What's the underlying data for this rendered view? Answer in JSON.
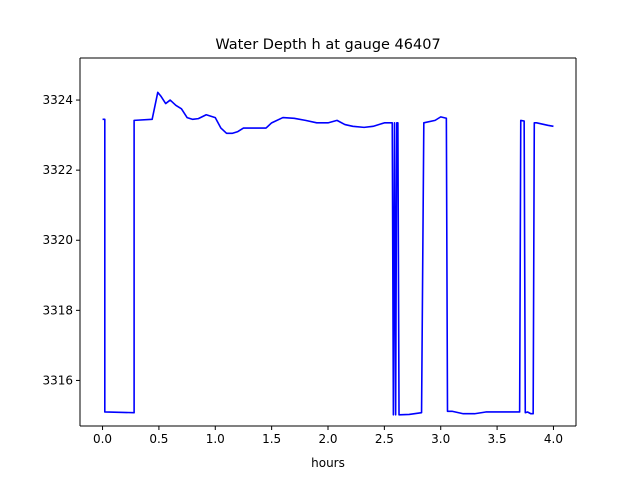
{
  "chart_data": {
    "type": "line",
    "title": "Water Depth h at gauge 46407",
    "xlabel": "hours",
    "ylabel": "",
    "xlim": [
      -0.2,
      4.2
    ],
    "ylim": [
      3314.7,
      3325.2
    ],
    "xticks": [
      0.0,
      0.5,
      1.0,
      1.5,
      2.0,
      2.5,
      3.0,
      3.5,
      4.0
    ],
    "xtick_labels": [
      "0.0",
      "0.5",
      "1.0",
      "1.5",
      "2.0",
      "2.5",
      "3.0",
      "3.5",
      "4.0"
    ],
    "yticks": [
      3316,
      3318,
      3320,
      3322,
      3324
    ],
    "ytick_labels": [
      "3316",
      "3318",
      "3320",
      "3322",
      "3324"
    ],
    "grid": false,
    "series": [
      {
        "color": "#0000ff",
        "x": [
          0.0,
          0.02,
          0.02,
          0.28,
          0.28,
          0.44,
          0.49,
          0.52,
          0.56,
          0.6,
          0.65,
          0.7,
          0.75,
          0.8,
          0.85,
          0.92,
          1.0,
          1.05,
          1.1,
          1.15,
          1.2,
          1.25,
          1.3,
          1.38,
          1.45,
          1.5,
          1.6,
          1.7,
          1.8,
          1.9,
          2.0,
          2.08,
          2.15,
          2.22,
          2.32,
          2.4,
          2.5,
          2.57,
          2.58,
          2.59,
          2.6,
          2.61,
          2.62,
          2.63,
          2.72,
          2.83,
          2.85,
          2.95,
          3.0,
          3.05,
          3.06,
          3.1,
          3.2,
          3.3,
          3.4,
          3.5,
          3.6,
          3.7,
          3.71,
          3.74,
          3.75,
          3.77,
          3.8,
          3.82,
          3.83,
          3.85,
          3.95,
          4.0
        ],
        "y": [
          3323.45,
          3323.45,
          3315.1,
          3315.08,
          3323.42,
          3323.45,
          3324.22,
          3324.1,
          3323.9,
          3324.0,
          3323.85,
          3323.75,
          3323.5,
          3323.45,
          3323.47,
          3323.58,
          3323.5,
          3323.2,
          3323.05,
          3323.05,
          3323.1,
          3323.2,
          3323.2,
          3323.2,
          3323.2,
          3323.35,
          3323.5,
          3323.48,
          3323.42,
          3323.35,
          3323.35,
          3323.42,
          3323.3,
          3323.25,
          3323.22,
          3323.25,
          3323.35,
          3323.35,
          3315.02,
          3323.35,
          3315.02,
          3323.35,
          3323.35,
          3315.02,
          3315.03,
          3315.08,
          3323.35,
          3323.42,
          3323.52,
          3323.48,
          3315.12,
          3315.12,
          3315.05,
          3315.05,
          3315.1,
          3315.1,
          3315.1,
          3315.1,
          3323.42,
          3323.4,
          3315.08,
          3315.1,
          3315.05,
          3315.05,
          3323.35,
          3323.35,
          3323.28,
          3323.25
        ]
      }
    ]
  }
}
